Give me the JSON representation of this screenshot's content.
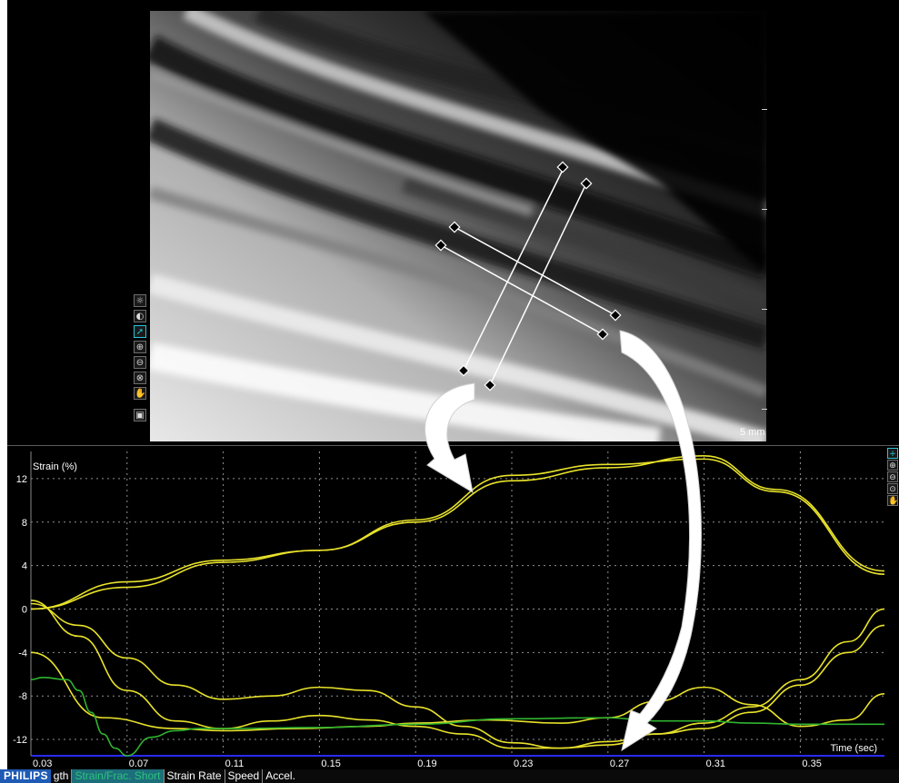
{
  "viewer": {
    "scale_label": "5 mm",
    "left_tools": [
      "contrast-icon",
      "brightness-icon",
      "pointer-icon",
      "zoom-in-icon",
      "zoom-out-icon",
      "pan-icon",
      "hand-icon",
      "camera-icon"
    ],
    "right_tools": [
      "plus-icon",
      "magnify-icon",
      "magnify-icon",
      "magnify-icon",
      "hand-icon"
    ]
  },
  "chart_data": {
    "type": "line",
    "ylabel": "Strain (%)",
    "xlabel": "Time (sec)",
    "x_ticks": [
      "0.03",
      "0.07",
      "0.11",
      "0.15",
      "0.19",
      "0.23",
      "0.27",
      "0.31",
      "0.35"
    ],
    "y_ticks": [
      "12",
      "8",
      "4",
      "0",
      "-4",
      "-8",
      "-12"
    ],
    "xlim": [
      0.03,
      0.385
    ],
    "ylim": [
      -13.5,
      14.5
    ],
    "grid": true,
    "colors": {
      "yellow": "#e8e22a",
      "green": "#2fb52f",
      "axis": "#2a2aff",
      "grid": "#cfcfcf"
    },
    "series": [
      {
        "color": "#e8e22a",
        "x": [
          0.03,
          0.07,
          0.11,
          0.15,
          0.19,
          0.23,
          0.27,
          0.31,
          0.34,
          0.385
        ],
        "y": [
          0,
          2,
          4.3,
          5.4,
          8,
          11.8,
          13.0,
          14.1,
          11.0,
          3.5
        ]
      },
      {
        "color": "#e8e22a",
        "x": [
          0.03,
          0.07,
          0.11,
          0.15,
          0.19,
          0.23,
          0.27,
          0.31,
          0.34,
          0.385
        ],
        "y": [
          0,
          2.5,
          4.5,
          5.4,
          8.2,
          12.3,
          13.3,
          13.8,
          10.8,
          3.2
        ]
      },
      {
        "color": "#e8e22a",
        "x": [
          0.03,
          0.05,
          0.07,
          0.09,
          0.11,
          0.13,
          0.15,
          0.17,
          0.19,
          0.21,
          0.23,
          0.25,
          0.27,
          0.29,
          0.31,
          0.33,
          0.35,
          0.37,
          0.385
        ],
        "y": [
          0.5,
          -1.5,
          -4.5,
          -7,
          -8.3,
          -8.0,
          -7.2,
          -7.5,
          -9,
          -10.8,
          -12.3,
          -12.8,
          -12.5,
          -11.5,
          -10.5,
          -9,
          -6.5,
          -3.0,
          0
        ]
      },
      {
        "color": "#e8e22a",
        "x": [
          0.03,
          0.05,
          0.07,
          0.09,
          0.11,
          0.13,
          0.15,
          0.17,
          0.19,
          0.21,
          0.23,
          0.25,
          0.27,
          0.29,
          0.31,
          0.33,
          0.35,
          0.37,
          0.385
        ],
        "y": [
          0.8,
          -2.5,
          -7.5,
          -10.3,
          -11.0,
          -10.3,
          -9.8,
          -10.2,
          -10.8,
          -11.5,
          -12.8,
          -12.8,
          -12.2,
          -11.5,
          -11.0,
          -9.5,
          -7,
          -4,
          -1.5
        ]
      },
      {
        "color": "#e8e22a",
        "x": [
          0.03,
          0.06,
          0.09,
          0.11,
          0.14,
          0.17,
          0.19,
          0.22,
          0.25,
          0.27,
          0.29,
          0.31,
          0.33,
          0.35,
          0.37,
          0.385
        ],
        "y": [
          -4,
          -10,
          -11.0,
          -11.2,
          -11.0,
          -10.8,
          -10.5,
          -10.2,
          -10.5,
          -10.0,
          -8.5,
          -7.2,
          -8.8,
          -10.8,
          -10.2,
          -7.8
        ]
      },
      {
        "color": "#2fb52f",
        "x": [
          0.03,
          0.035,
          0.045,
          0.05,
          0.055,
          0.06,
          0.065,
          0.07,
          0.08,
          0.09,
          0.1,
          0.11,
          0.15,
          0.19,
          0.23,
          0.27,
          0.29,
          0.31,
          0.33,
          0.35,
          0.385
        ],
        "y": [
          -6.5,
          -6.3,
          -6.5,
          -7.5,
          -9.5,
          -11.5,
          -12.8,
          -13.5,
          -11.8,
          -11.2,
          -11.0,
          -11.0,
          -10.9,
          -10.6,
          -10.1,
          -10.0,
          -10.3,
          -10.3,
          -10.5,
          -10.6,
          -10.6
        ]
      }
    ]
  },
  "tabbar": {
    "brand": "PHILIPS",
    "tabs": [
      "gth",
      "Strain/Frac. Short",
      "Strain Rate",
      "Speed",
      "Accel."
    ]
  }
}
